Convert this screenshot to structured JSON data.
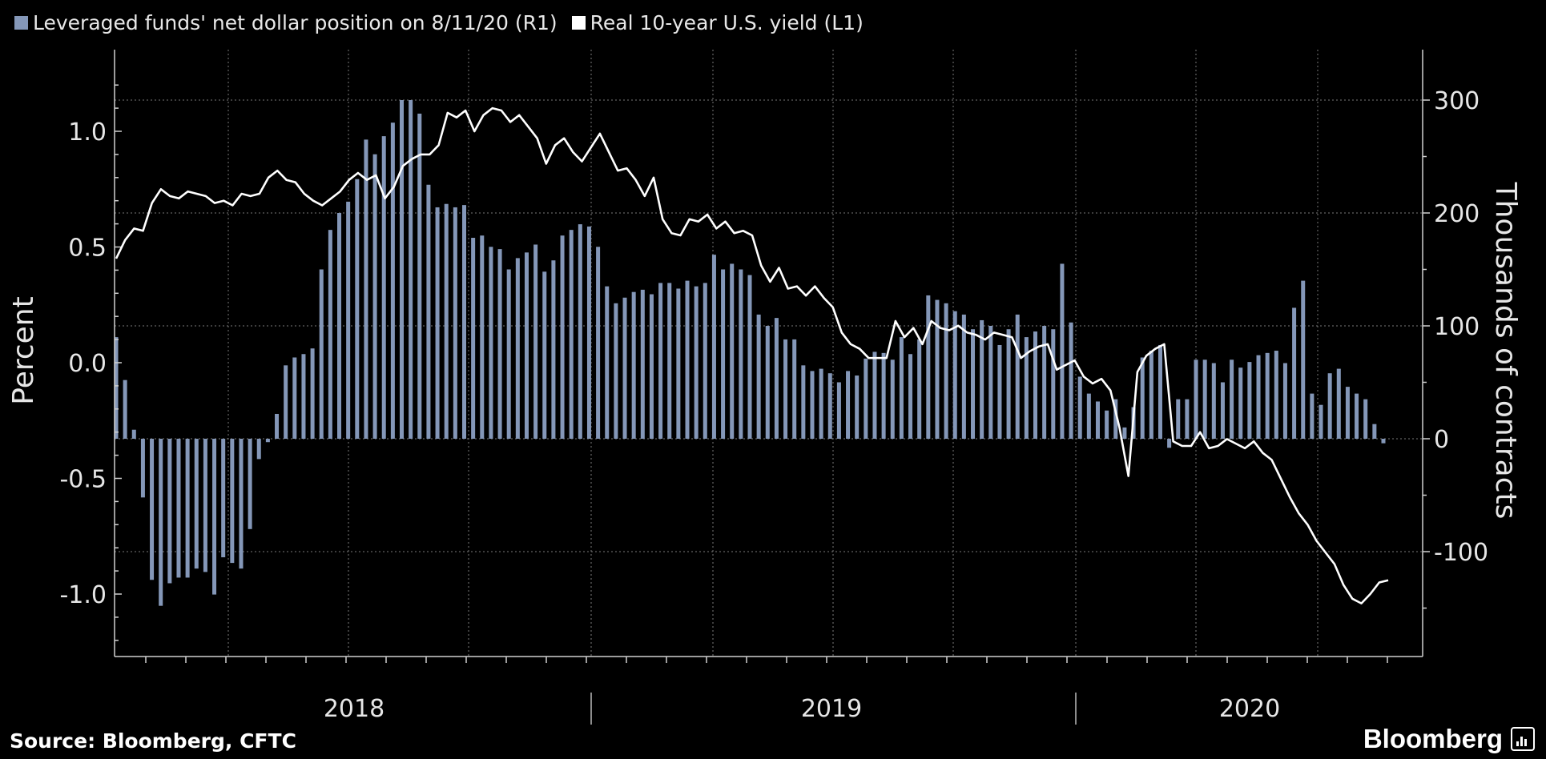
{
  "legend": {
    "bars_label": "Leveraged funds' net dollar position on 8/11/20 (R1)",
    "line_label": "Real 10-year U.S. yield (L1)"
  },
  "footer": {
    "source": "Source: Bloomberg, CFTC",
    "brand": "Bloomberg"
  },
  "colors": {
    "background": "#000000",
    "bars": "#8497b8",
    "line": "#ffffff",
    "grid": "#7a7a7a",
    "text": "#e6e6e6"
  },
  "chart_data": {
    "type": "bar+line",
    "dual_axis": true,
    "grid": true,
    "legend_position": "top-left",
    "x_axis": {
      "year_labels": [
        "2018",
        "2019",
        "2020"
      ],
      "range": [
        "2017-08",
        "2020-08"
      ]
    },
    "y_left": {
      "label": "Percent",
      "ylim": [
        -1.25,
        1.3
      ],
      "ticks": [
        "1.0",
        "0.5",
        "0.0",
        "-0.5",
        "-1.0"
      ]
    },
    "y_right": {
      "label": "Thousands of contracts",
      "ylim": [
        -190,
        345
      ],
      "ticks": [
        "300",
        "200",
        "100",
        "0",
        "-100"
      ]
    },
    "series": [
      {
        "name": "Leveraged funds' net dollar position on 8/11/20 (R1)",
        "axis": "right",
        "kind": "bar",
        "values": [
          90,
          52,
          8,
          -52,
          -125,
          -148,
          -128,
          -123,
          -123,
          -115,
          -118,
          -138,
          -105,
          -110,
          -115,
          -80,
          -18,
          -3,
          22,
          65,
          72,
          75,
          80,
          150,
          185,
          200,
          210,
          230,
          265,
          252,
          268,
          280,
          300,
          300,
          288,
          225,
          205,
          208,
          205,
          207,
          178,
          180,
          170,
          168,
          150,
          160,
          165,
          172,
          148,
          158,
          180,
          185,
          190,
          188,
          170,
          135,
          120,
          125,
          130,
          132,
          128,
          138,
          138,
          133,
          140,
          135,
          138,
          163,
          150,
          155,
          150,
          145,
          110,
          100,
          107,
          88,
          88,
          65,
          60,
          62,
          58,
          50,
          60,
          56,
          71,
          77,
          76,
          70,
          90,
          75,
          88,
          127,
          123,
          120,
          113,
          110,
          97,
          105,
          100,
          83,
          97,
          110,
          90,
          95,
          100,
          97,
          155,
          103,
          55,
          40,
          33,
          25,
          35,
          10,
          28,
          72,
          78,
          83,
          -8,
          35,
          35,
          70,
          70,
          67,
          50,
          70,
          63,
          68,
          74,
          76,
          78,
          67,
          116,
          140,
          40,
          30,
          58,
          62,
          46,
          40,
          35,
          13,
          -4
        ]
      },
      {
        "name": "Real 10-year U.S. yield (L1)",
        "axis": "left",
        "kind": "line",
        "values": [
          0.45,
          0.53,
          0.58,
          0.57,
          0.69,
          0.75,
          0.72,
          0.71,
          0.74,
          0.73,
          0.72,
          0.69,
          0.7,
          0.68,
          0.73,
          0.72,
          0.73,
          0.8,
          0.83,
          0.79,
          0.78,
          0.73,
          0.7,
          0.68,
          0.71,
          0.74,
          0.79,
          0.82,
          0.79,
          0.81,
          0.71,
          0.76,
          0.85,
          0.88,
          0.9,
          0.9,
          0.94,
          1.08,
          1.06,
          1.09,
          1.0,
          1.07,
          1.1,
          1.09,
          1.04,
          1.07,
          1.02,
          0.97,
          0.86,
          0.94,
          0.97,
          0.91,
          0.87,
          0.93,
          0.99,
          0.91,
          0.83,
          0.84,
          0.79,
          0.72,
          0.8,
          0.62,
          0.56,
          0.55,
          0.62,
          0.61,
          0.64,
          0.58,
          0.61,
          0.56,
          0.57,
          0.55,
          0.42,
          0.35,
          0.41,
          0.32,
          0.33,
          0.29,
          0.33,
          0.28,
          0.24,
          0.13,
          0.08,
          0.06,
          0.02,
          0.02,
          0.02,
          0.18,
          0.11,
          0.15,
          0.08,
          0.18,
          0.15,
          0.14,
          0.16,
          0.13,
          0.12,
          0.1,
          0.13,
          0.12,
          0.11,
          0.02,
          0.05,
          0.07,
          0.08,
          -0.03,
          -0.01,
          0.01,
          -0.06,
          -0.09,
          -0.07,
          -0.12,
          -0.28,
          -0.49,
          -0.04,
          0.03,
          0.06,
          0.08,
          -0.34,
          -0.36,
          -0.36,
          -0.3,
          -0.37,
          -0.36,
          -0.33,
          -0.35,
          -0.37,
          -0.34,
          -0.39,
          -0.42,
          -0.5,
          -0.58,
          -0.65,
          -0.7,
          -0.77,
          -0.82,
          -0.87,
          -0.96,
          -1.02,
          -1.04,
          -1.0,
          -0.95,
          -0.94
        ]
      }
    ]
  }
}
